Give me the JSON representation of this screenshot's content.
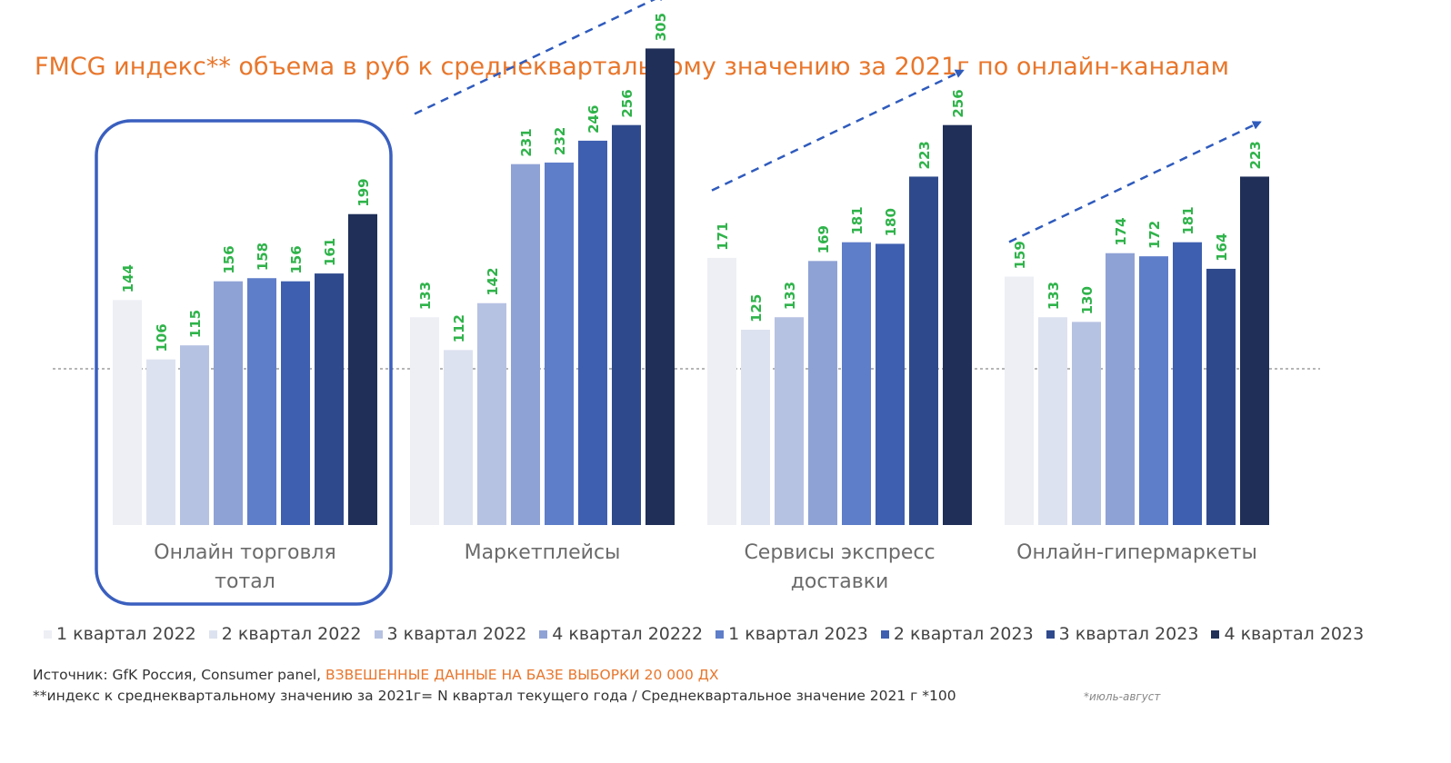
{
  "title": "FMCG индекс** объема в руб к среднеквартальному значению за 2021г по онлайн-каналам",
  "chart_data": {
    "type": "bar",
    "categories": [
      "Онлайн торговля тотал",
      "Маркетплейсы",
      "Сервисы экспресс доставки",
      "Онлайн-гипермаркеты"
    ],
    "category_label_lines": [
      [
        "Онлайн торговля",
        "тотал"
      ],
      [
        "Маркетплейсы"
      ],
      [
        "Сервисы экспресс",
        "доставки"
      ],
      [
        "Онлайн-гипермаркеты"
      ]
    ],
    "series": [
      {
        "name": "1 квартал 2022",
        "color": "#edeff5",
        "values": [
          144,
          133,
          171,
          159
        ]
      },
      {
        "name": "2 квартал 2022",
        "color": "#dde2f0",
        "values": [
          106,
          112,
          125,
          133
        ]
      },
      {
        "name": "3 квартал 2022",
        "color": "#b6c2e2",
        "values": [
          115,
          142,
          133,
          130
        ]
      },
      {
        "name": "4 квартал 20222",
        "color": "#8fa2d5",
        "values": [
          156,
          231,
          169,
          174
        ]
      },
      {
        "name": "1 квартал 2023",
        "color": "#5f7ec9",
        "values": [
          158,
          232,
          181,
          172
        ]
      },
      {
        "name": "2 квартал 2023",
        "color": "#3e5fb0",
        "values": [
          156,
          246,
          180,
          181
        ]
      },
      {
        "name": "3 квартал 2023",
        "color": "#2f4a8c",
        "values": [
          161,
          256,
          223,
          164
        ]
      },
      {
        "name": "4 квартал 2023",
        "color": "#1f2f58",
        "values": [
          199,
          305,
          256,
          223
        ]
      }
    ],
    "baseline": 100,
    "ylim": [
      0,
      320
    ],
    "value_label_color": "#2fb34a",
    "highlighted_category": "Онлайн торговля тотал",
    "legend_position": "bottom",
    "grid": false
  },
  "footer": {
    "source_label": "Источник: GfK Россия, Consumer panel,",
    "source_accent": "ВЗВЕШЕННЫЕ ДАННЫЕ НА БАЗЕ ВЫБОРКИ 20 000 ДХ",
    "footnote": "**индекс к среднеквартальному значению за 2021г= N квартал текущего года / Среднеквартальное значение 2021 г *100",
    "period_note": "*июль-август"
  },
  "colors": {
    "title": "#e8762b",
    "accent": "#e8762b",
    "highlight_frame": "#3a5fbf",
    "trend_arrow": "#2f5bbd",
    "category_label": "#6b6b6b"
  }
}
